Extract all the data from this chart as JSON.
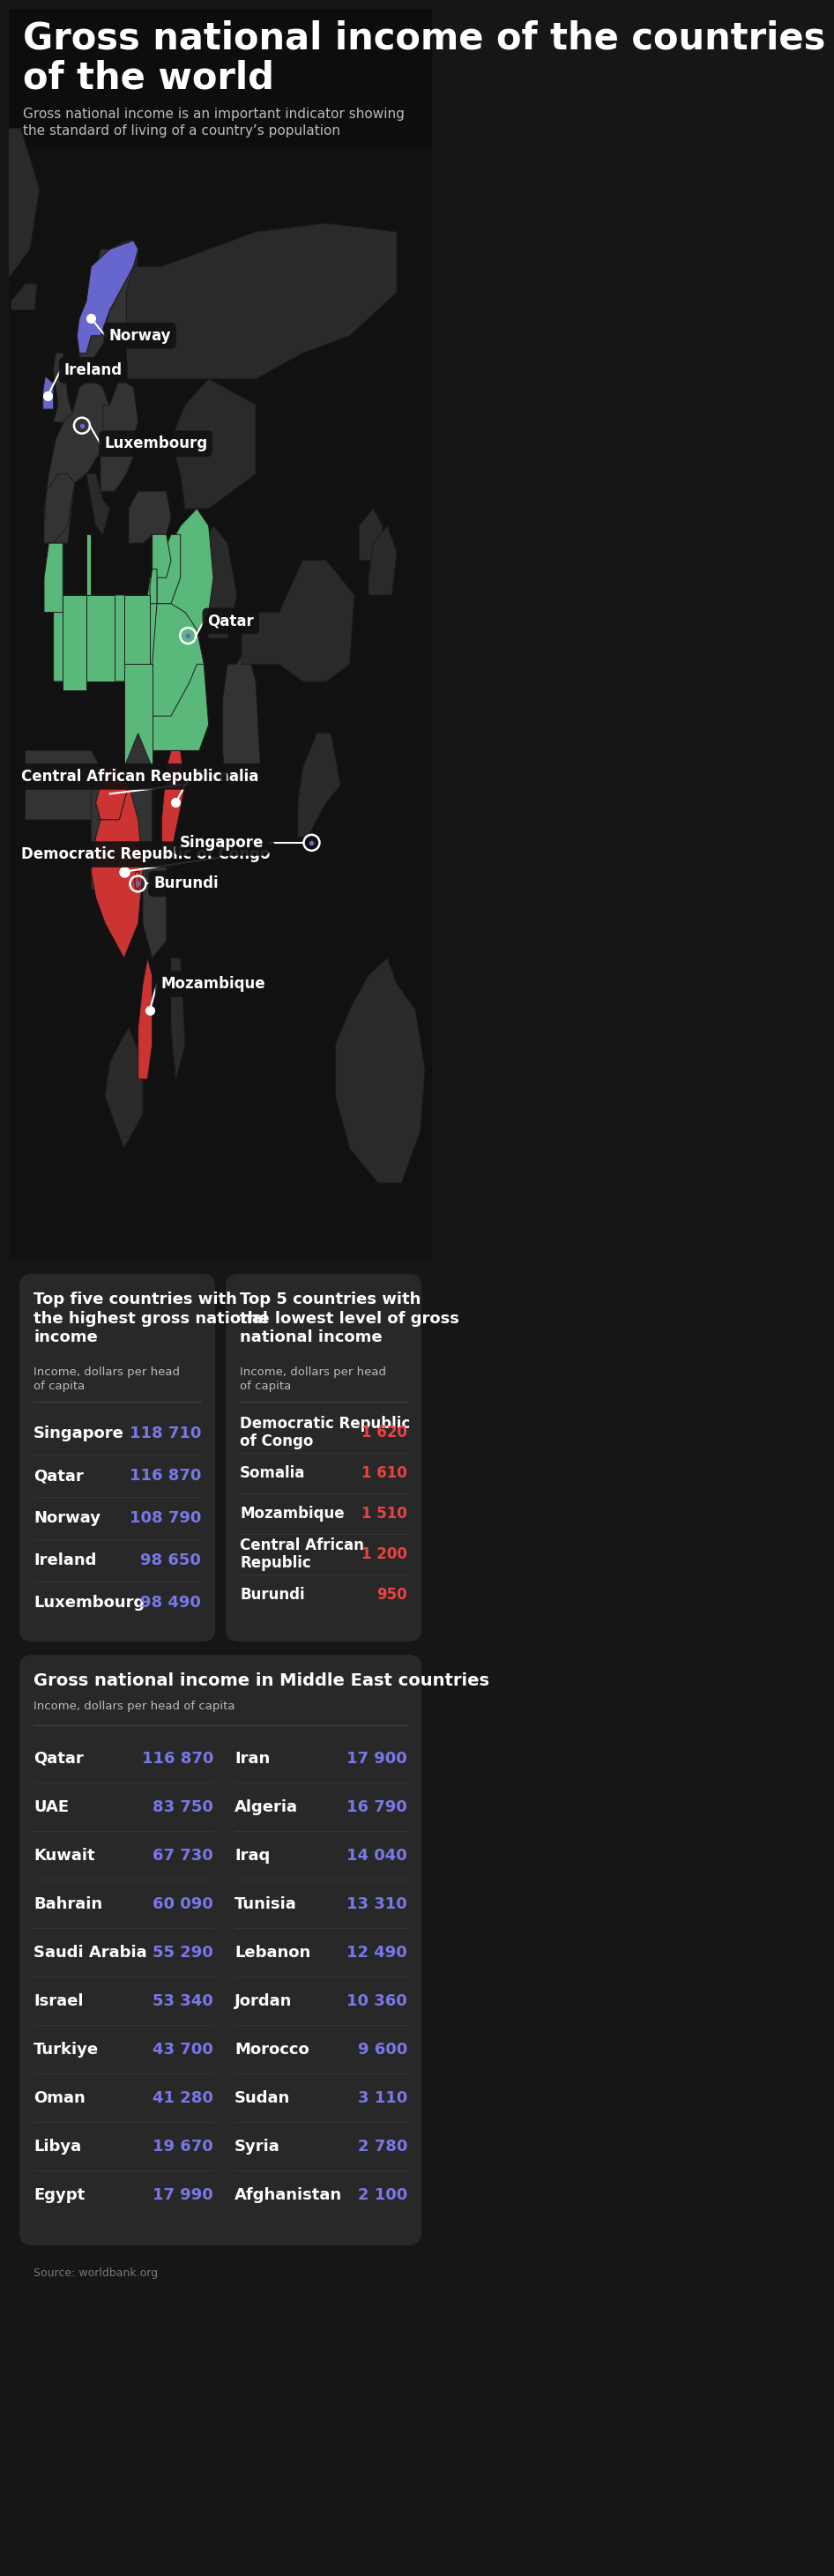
{
  "title": "Gross national income of the countries\nof the world",
  "subtitle": "Gross national income is an important indicator showing\nthe standard of living of a country’s population",
  "bg_color": "#161616",
  "card_bg": "#282828",
  "text_color": "#ffffff",
  "subtitle_color": "#bbbbbb",
  "high_value_color": "#7878e8",
  "low_value_color": "#e84444",
  "green_color": "#5ab87a",
  "map_bg": "#111111",
  "country_dark": "#333333",
  "country_mid": "#2a2a2a",
  "country_green": "#5ab87a",
  "country_blue": "#6666cc",
  "country_red": "#cc3333",
  "map_border": "#222222",
  "top_high_title": "Top five countries with\nthe highest gross national\nincome",
  "top_high_subtitle": "Income, dollars per head\nof capita",
  "top_low_title": "Top 5 countries with\nthe lowest level of gross\nnational income",
  "top_low_subtitle": "Income, dollars per head\nof capita",
  "high_countries": [
    "Singapore",
    "Qatar",
    "Norway",
    "Ireland",
    "Luxembourg"
  ],
  "high_values": [
    "118 710",
    "116 870",
    "108 790",
    "98 650",
    "98 490"
  ],
  "low_countries": [
    "Democratic Republic\nof Congo",
    "Somalia",
    "Mozambique",
    "Central African\nRepublic",
    "Burundi"
  ],
  "low_values": [
    "1 620",
    "1 610",
    "1 510",
    "1 200",
    "950"
  ],
  "middle_east_title": "Gross national income in Middle East countries",
  "middle_east_subtitle": "Income, dollars per head of capita",
  "me_left_countries": [
    "Qatar",
    "UAE",
    "Kuwait",
    "Bahrain",
    "Saudi Arabia",
    "Israel",
    "Turkiye",
    "Oman",
    "Libya",
    "Egypt"
  ],
  "me_left_values": [
    "116 870",
    "83 750",
    "67 730",
    "60 090",
    "55 290",
    "53 340",
    "43 700",
    "41 280",
    "19 670",
    "17 990"
  ],
  "me_right_countries": [
    "Iran",
    "Algeria",
    "Iraq",
    "Tunisia",
    "Lebanon",
    "Jordan",
    "Morocco",
    "Sudan",
    "Syria",
    "Afghanistan"
  ],
  "me_right_values": [
    "17 900",
    "16 790",
    "14 040",
    "13 310",
    "12 490",
    "10 360",
    "9 600",
    "3 110",
    "2 780",
    "2 100"
  ],
  "source_text": "Source: worldbank.org",
  "title_fontsize": 30,
  "subtitle_fontsize": 11,
  "label_fontsize": 14,
  "row_fontsize": 14,
  "me_row_fontsize": 14
}
